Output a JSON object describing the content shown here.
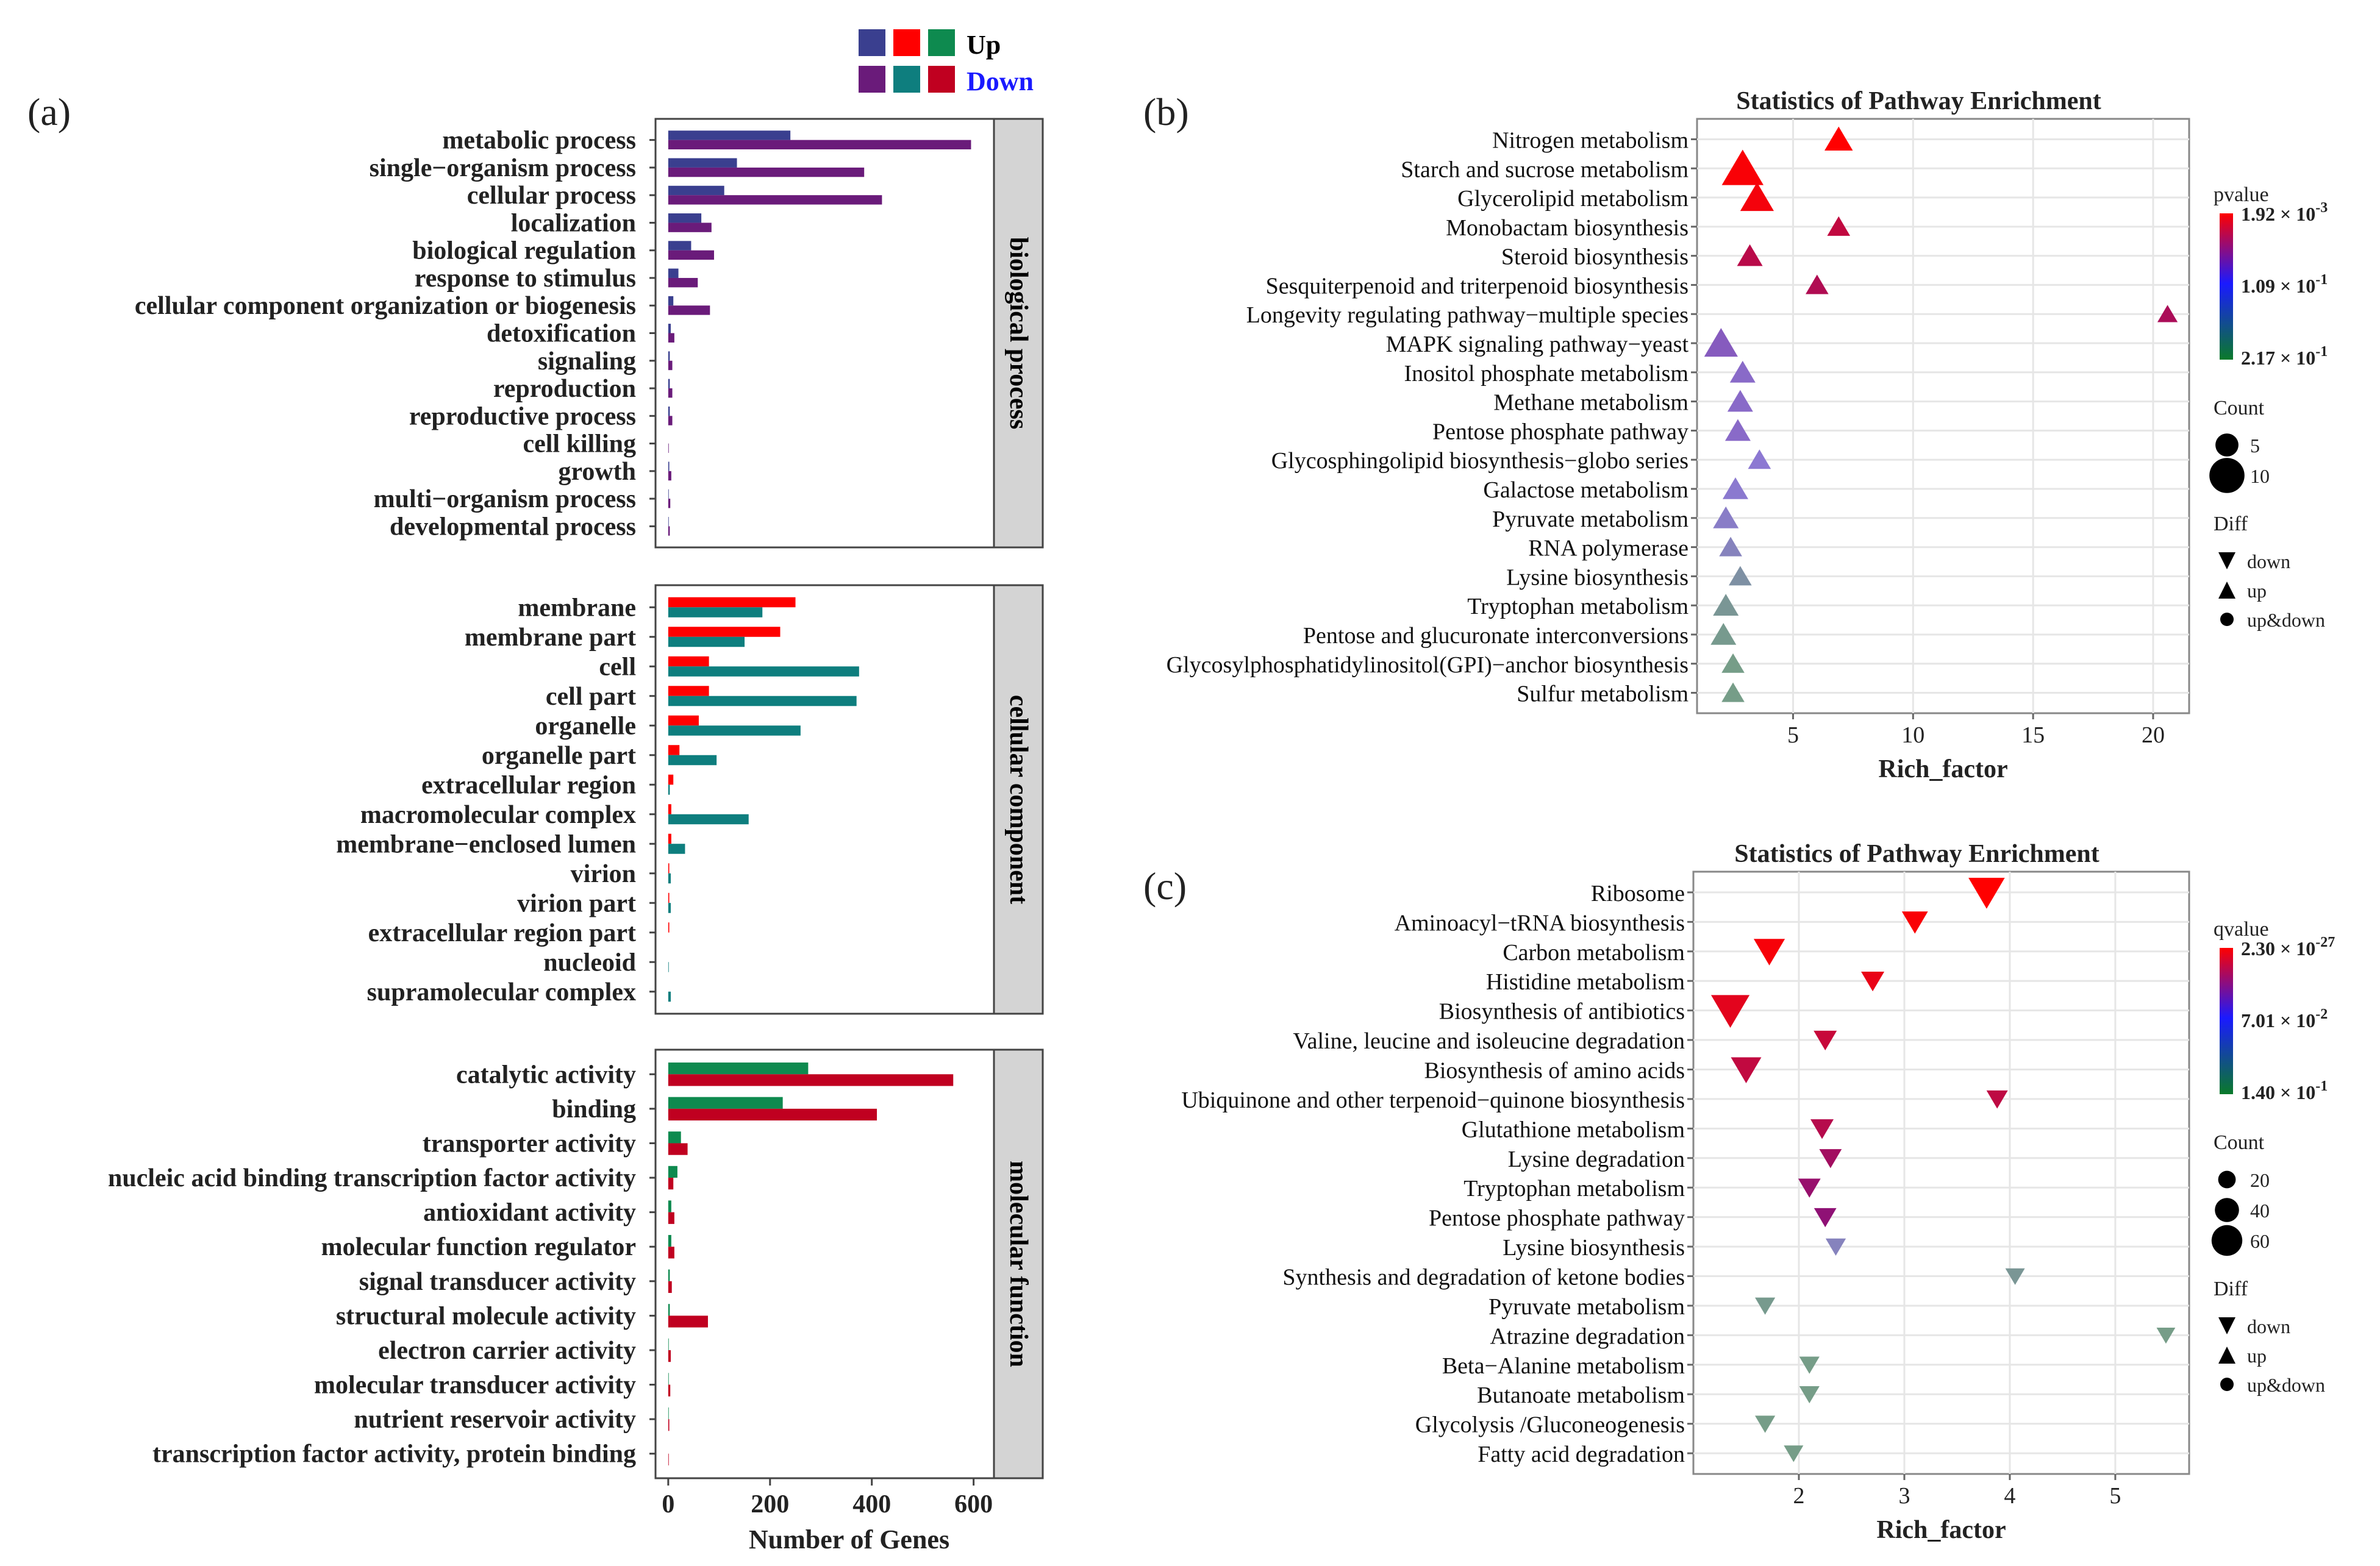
{
  "colors": {
    "up_a": "#3A3F8F",
    "up_b": "#FF0000",
    "up_c": "#0E8A4F",
    "down_a": "#6A1B7A",
    "down_b": "#0E7E7E",
    "down_c": "#C00020",
    "strip": "#D4D4D4",
    "grid": "#E6E6E6",
    "frame": "#444444"
  },
  "legend_a": {
    "up_label": "Up",
    "down_label": "Down"
  },
  "panel_labels": {
    "a": "(a)",
    "b": "(b)",
    "c": "(c)"
  },
  "chart_data": [
    {
      "id": "a",
      "type": "bar",
      "orientation": "horizontal",
      "xlabel": "Number of Genes",
      "xlim": [
        -25,
        640
      ],
      "xticks": [
        0,
        200,
        400,
        600
      ],
      "facets": [
        {
          "strip": "biological process",
          "categories": [
            "metabolic process",
            "single−organism process",
            "cellular process",
            "localization",
            "biological regulation",
            "response to stimulus",
            "cellular component organization or biogenesis",
            "detoxification",
            "signaling",
            "reproduction",
            "reproductive process",
            "cell killing",
            "growth",
            "multi−organism process",
            "developmental process"
          ],
          "series": [
            {
              "name": "Up",
              "values": [
                240,
                135,
                110,
                65,
                45,
                20,
                10,
                5,
                3,
                3,
                3,
                0,
                2,
                1,
                1
              ]
            },
            {
              "name": "Down",
              "values": [
                595,
                385,
                420,
                85,
                90,
                58,
                82,
                12,
                8,
                8,
                8,
                1,
                6,
                4,
                3
              ]
            }
          ]
        },
        {
          "strip": "cellular component",
          "categories": [
            "membrane",
            "membrane part",
            "cell",
            "cell part",
            "organelle",
            "organelle part",
            "extracellular region",
            "macromolecular complex",
            "membrane−enclosed lumen",
            "virion",
            "virion part",
            "extracellular region part",
            "nucleoid",
            "supramolecular complex"
          ],
          "series": [
            {
              "name": "Up",
              "values": [
                250,
                220,
                80,
                80,
                60,
                22,
                10,
                6,
                6,
                2,
                2,
                2,
                0,
                0
              ]
            },
            {
              "name": "Down",
              "values": [
                185,
                150,
                375,
                370,
                260,
                95,
                3,
                158,
                33,
                5,
                5,
                0,
                1,
                5
              ]
            }
          ]
        },
        {
          "strip": "molecular function",
          "categories": [
            "catalytic activity",
            "binding",
            "transporter activity",
            "nucleic acid binding transcription factor activity",
            "antioxidant activity",
            "molecular function regulator",
            "signal transducer activity",
            "structural molecule activity",
            "electron carrier activity",
            "molecular transducer activity",
            "nutrient reservoir activity",
            "transcription factor activity, protein binding"
          ],
          "series": [
            {
              "name": "Up",
              "values": [
                275,
                225,
                25,
                18,
                6,
                6,
                3,
                3,
                1,
                1,
                1,
                0
              ]
            },
            {
              "name": "Down",
              "values": [
                560,
                410,
                38,
                10,
                12,
                12,
                7,
                78,
                5,
                4,
                2,
                1
              ]
            }
          ]
        }
      ]
    },
    {
      "id": "b",
      "type": "scatter",
      "title": "Statistics of Pathway Enrichment",
      "xlabel": "Rich_factor",
      "xlim": [
        1.0,
        21.5
      ],
      "xticks": [
        5,
        10,
        15,
        20
      ],
      "categories": [
        "Nitrogen metabolism",
        "Starch and sucrose metabolism",
        "Glycerolipid metabolism",
        "Monobactam biosynthesis",
        "Steroid biosynthesis",
        "Sesquiterpenoid and triterpenoid biosynthesis",
        "Longevity regulating pathway−multiple species",
        "MAPK signaling pathway−yeast",
        "Inositol phosphate metabolism",
        "Methane metabolism",
        "Pentose phosphate pathway",
        "Glycosphingolipid biosynthesis−globo series",
        "Galactose metabolism",
        "Pyruvate metabolism",
        "RNA polymerase",
        "Lysine biosynthesis",
        "Tryptophan metabolism",
        "Pentose and glucuronate interconversions",
        "Glycosylphosphatidylinositol(GPI)−anchor biosynthesis",
        "Sulfur metabolism"
      ],
      "rich_factor": [
        6.9,
        2.9,
        3.5,
        6.9,
        3.2,
        6.0,
        20.6,
        2.0,
        2.9,
        2.8,
        2.7,
        3.6,
        2.6,
        2.2,
        2.4,
        2.8,
        2.2,
        2.1,
        2.5,
        2.5
      ],
      "count": [
        6,
        11,
        8,
        4,
        5,
        4,
        3,
        8,
        5,
        5,
        5,
        4,
        5,
        5,
        4,
        4,
        5,
        5,
        4,
        4
      ],
      "shade": [
        0.0,
        0.02,
        0.04,
        0.22,
        0.25,
        0.28,
        0.3,
        0.58,
        0.6,
        0.6,
        0.6,
        0.62,
        0.63,
        0.66,
        0.7,
        0.8,
        0.85,
        0.88,
        0.9,
        0.9
      ],
      "colorbar": {
        "title": "pvalue",
        "labels_mantissa": [
          "1.92",
          "1.09",
          "2.17"
        ],
        "labels_exponent": [
          "-3",
          "-1",
          "-1"
        ]
      },
      "size_legend": {
        "title": "Count",
        "values": [
          5,
          10
        ]
      },
      "shape_legend": {
        "title": "Diff",
        "items": [
          "down",
          "up",
          "up&down"
        ]
      }
    },
    {
      "id": "c",
      "type": "scatter",
      "title": "Statistics of Pathway Enrichment",
      "xlabel": "Rich_factor",
      "xlim": [
        1.0,
        5.7
      ],
      "xticks": [
        2,
        3,
        4,
        5
      ],
      "categories": [
        "Ribosome",
        "Aminoacyl−tRNA biosynthesis",
        "Carbon metabolism",
        "Histidine metabolism",
        "Biosynthesis of antibiotics",
        "Valine, leucine and isoleucine degradation",
        "Biosynthesis of amino acids",
        "Ubiquinone and other terpenoid−quinone biosynthesis",
        "Glutathione metabolism",
        "Lysine degradation",
        "Tryptophan metabolism",
        "Pentose phosphate pathway",
        "Lysine biosynthesis",
        "Synthesis and degradation of ketone bodies",
        "Pyruvate metabolism",
        "Atrazine degradation",
        "Beta−Alanine metabolism",
        "Butanoate metabolism",
        "Glycolysis /Gluconeogenesis",
        "Fatty acid degradation"
      ],
      "rich_factor": [
        3.78,
        3.1,
        1.72,
        2.7,
        1.35,
        2.25,
        1.5,
        3.88,
        2.22,
        2.3,
        2.1,
        2.25,
        2.35,
        4.05,
        1.68,
        5.48,
        2.1,
        2.1,
        1.68,
        1.95
      ],
      "count": [
        66,
        38,
        52,
        30,
        72,
        30,
        50,
        25,
        30,
        28,
        28,
        28,
        22,
        20,
        22,
        18,
        22,
        22,
        22,
        20
      ],
      "shade": [
        0.0,
        0.02,
        0.03,
        0.08,
        0.1,
        0.2,
        0.22,
        0.23,
        0.26,
        0.33,
        0.37,
        0.4,
        0.7,
        0.85,
        0.88,
        0.9,
        0.9,
        0.9,
        0.9,
        0.9
      ],
      "colorbar": {
        "title": "qvalue",
        "labels_mantissa": [
          "2.30",
          "7.01",
          "1.40"
        ],
        "labels_exponent": [
          "-27",
          "-2",
          "-1"
        ]
      },
      "size_legend": {
        "title": "Count",
        "values": [
          20,
          40,
          60
        ]
      },
      "shape_legend": {
        "title": "Diff",
        "items": [
          "down",
          "up",
          "up&down"
        ]
      }
    }
  ]
}
